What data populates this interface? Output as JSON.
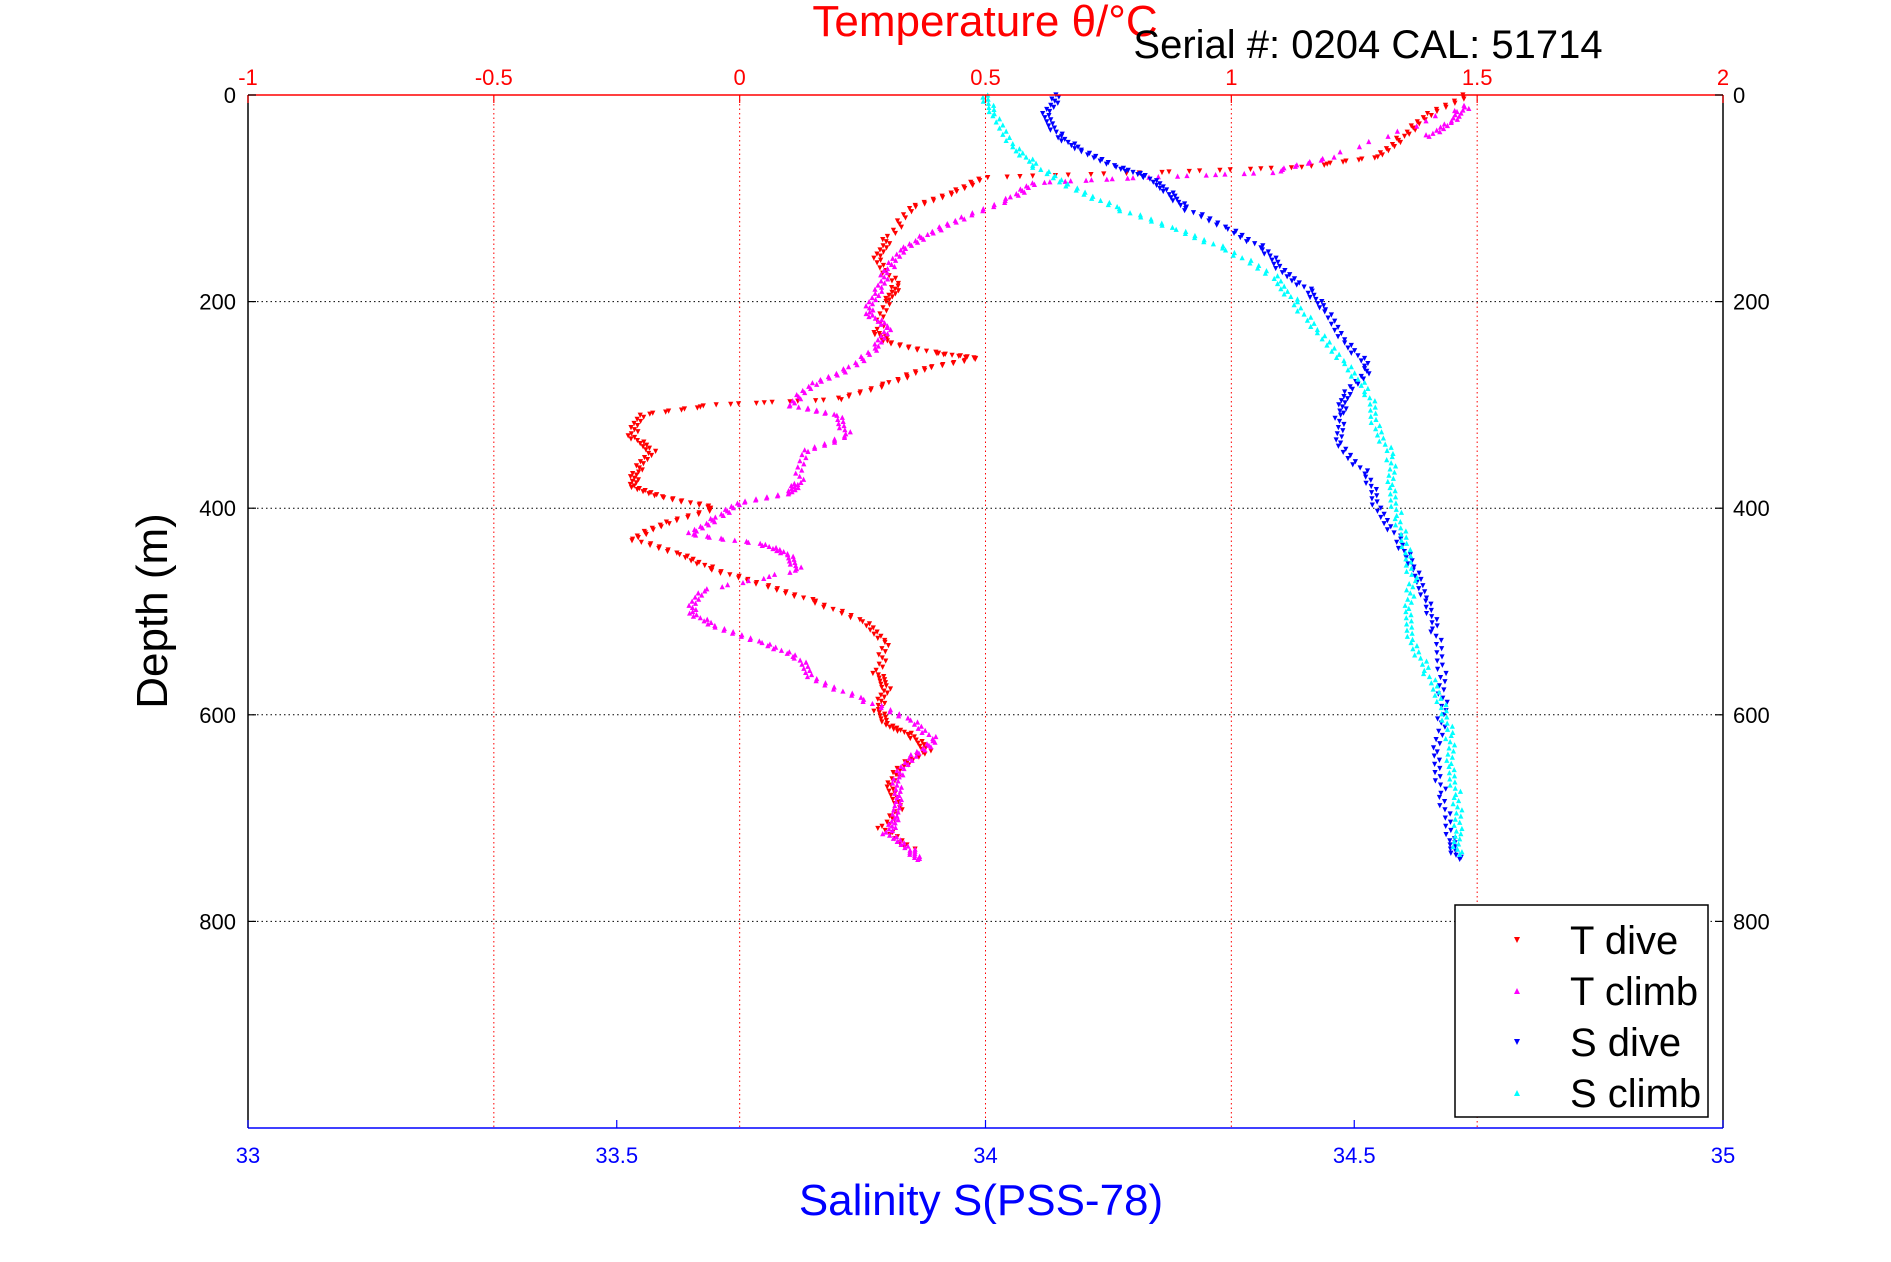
{
  "chart_data": {
    "type": "scatter",
    "title": "Temperature θ/°C",
    "subtitle": "Serial #: 0204  CAL: 51714",
    "ylabel": "Depth (m)",
    "xlabel": "Salinity S(PSS-78)",
    "y_axis": {
      "range": [
        0,
        1000
      ],
      "inverted": true,
      "ticks": [
        0,
        200,
        400,
        600,
        800
      ],
      "grid": true
    },
    "x_top_axis": {
      "label": "Temperature θ/°C",
      "range": [
        -1,
        2
      ],
      "ticks": [
        "-1",
        "-0.5",
        "0",
        "0.5",
        "1",
        "1.5",
        "2"
      ],
      "grid": true,
      "color": "#ff0000"
    },
    "x_bottom_axis": {
      "label": "Salinity S(PSS-78)",
      "range": [
        33,
        35
      ],
      "ticks": [
        "33",
        "33.5",
        "34",
        "34.5",
        "35"
      ],
      "color": "#0000ff"
    },
    "legend_position": "bottom-right",
    "series": [
      {
        "name": "T dive",
        "axis": "temperature",
        "color": "#ff0000",
        "marker": "triangle-down",
        "points": [
          [
            1.48,
            0
          ],
          [
            1.4,
            20
          ],
          [
            1.35,
            40
          ],
          [
            1.3,
            60
          ],
          [
            1.15,
            70
          ],
          [
            0.85,
            75
          ],
          [
            0.5,
            80
          ],
          [
            0.43,
            95
          ],
          [
            0.35,
            110
          ],
          [
            0.3,
            140
          ],
          [
            0.28,
            160
          ],
          [
            0.32,
            185
          ],
          [
            0.3,
            200
          ],
          [
            0.28,
            230
          ],
          [
            0.3,
            240
          ],
          [
            0.4,
            250
          ],
          [
            0.48,
            255
          ],
          [
            0.38,
            265
          ],
          [
            0.3,
            280
          ],
          [
            0.2,
            295
          ],
          [
            -0.05,
            300
          ],
          [
            -0.2,
            310
          ],
          [
            -0.22,
            330
          ],
          [
            -0.18,
            345
          ],
          [
            -0.21,
            365
          ],
          [
            -0.22,
            380
          ],
          [
            -0.15,
            390
          ],
          [
            -0.05,
            400
          ],
          [
            -0.15,
            415
          ],
          [
            -0.22,
            430
          ],
          [
            -0.12,
            445
          ],
          [
            -0.05,
            460
          ],
          [
            0.05,
            475
          ],
          [
            0.15,
            490
          ],
          [
            0.25,
            510
          ],
          [
            0.3,
            530
          ],
          [
            0.28,
            560
          ],
          [
            0.3,
            575
          ],
          [
            0.28,
            595
          ],
          [
            0.3,
            610
          ],
          [
            0.35,
            620
          ],
          [
            0.38,
            635
          ],
          [
            0.33,
            650
          ],
          [
            0.3,
            670
          ],
          [
            0.33,
            690
          ],
          [
            0.29,
            710
          ],
          [
            0.35,
            730
          ]
        ]
      },
      {
        "name": "T climb",
        "axis": "temperature",
        "color": "#ff00ff",
        "marker": "triangle-up",
        "points": [
          [
            1.4,
            40
          ],
          [
            1.45,
            25
          ],
          [
            1.48,
            10
          ],
          [
            1.2,
            60
          ],
          [
            1.08,
            75
          ],
          [
            0.8,
            80
          ],
          [
            0.6,
            85
          ],
          [
            0.55,
            100
          ],
          [
            0.45,
            120
          ],
          [
            0.38,
            135
          ],
          [
            0.33,
            150
          ],
          [
            0.3,
            170
          ],
          [
            0.28,
            190
          ],
          [
            0.26,
            210
          ],
          [
            0.3,
            225
          ],
          [
            0.28,
            245
          ],
          [
            0.22,
            265
          ],
          [
            0.15,
            280
          ],
          [
            0.1,
            300
          ],
          [
            0.2,
            310
          ],
          [
            0.22,
            330
          ],
          [
            0.13,
            345
          ],
          [
            0.12,
            375
          ],
          [
            0.1,
            385
          ],
          [
            0.0,
            395
          ],
          [
            -0.05,
            410
          ],
          [
            -0.1,
            425
          ],
          [
            0.05,
            435
          ],
          [
            0.1,
            445
          ],
          [
            0.12,
            460
          ],
          [
            -0.08,
            480
          ],
          [
            -0.1,
            500
          ],
          [
            -0.05,
            515
          ],
          [
            0.05,
            530
          ],
          [
            0.12,
            545
          ],
          [
            0.15,
            565
          ],
          [
            0.25,
            585
          ],
          [
            0.35,
            605
          ],
          [
            0.4,
            625
          ],
          [
            0.35,
            640
          ],
          [
            0.32,
            660
          ],
          [
            0.32,
            680
          ],
          [
            0.32,
            700
          ],
          [
            0.3,
            715
          ],
          [
            0.35,
            730
          ],
          [
            0.36,
            740
          ]
        ]
      },
      {
        "name": "S dive",
        "axis": "salinity",
        "color": "#0000ff",
        "marker": "triangle-down",
        "points": [
          [
            34.1,
            0
          ],
          [
            34.08,
            20
          ],
          [
            34.1,
            40
          ],
          [
            34.13,
            55
          ],
          [
            34.18,
            70
          ],
          [
            34.22,
            80
          ],
          [
            34.25,
            95
          ],
          [
            34.27,
            110
          ],
          [
            34.33,
            130
          ],
          [
            34.38,
            150
          ],
          [
            34.4,
            170
          ],
          [
            34.44,
            190
          ],
          [
            34.46,
            210
          ],
          [
            34.49,
            240
          ],
          [
            34.52,
            265
          ],
          [
            34.49,
            290
          ],
          [
            34.48,
            310
          ],
          [
            34.48,
            340
          ],
          [
            34.52,
            370
          ],
          [
            34.53,
            400
          ],
          [
            34.56,
            430
          ],
          [
            34.58,
            460
          ],
          [
            34.6,
            490
          ],
          [
            34.61,
            520
          ],
          [
            34.62,
            560
          ],
          [
            34.62,
            600
          ],
          [
            34.61,
            640
          ],
          [
            34.62,
            680
          ],
          [
            34.63,
            720
          ],
          [
            34.64,
            740
          ]
        ]
      },
      {
        "name": "S climb",
        "axis": "salinity",
        "color": "#00ffff",
        "marker": "triangle-up",
        "points": [
          [
            34.0,
            0
          ],
          [
            34.01,
            20
          ],
          [
            34.04,
            50
          ],
          [
            34.07,
            70
          ],
          [
            34.12,
            90
          ],
          [
            34.18,
            110
          ],
          [
            34.26,
            130
          ],
          [
            34.33,
            150
          ],
          [
            34.39,
            175
          ],
          [
            34.42,
            200
          ],
          [
            34.45,
            230
          ],
          [
            34.49,
            260
          ],
          [
            34.52,
            290
          ],
          [
            34.53,
            320
          ],
          [
            34.55,
            350
          ],
          [
            34.55,
            380
          ],
          [
            34.56,
            410
          ],
          [
            34.57,
            440
          ],
          [
            34.58,
            470
          ],
          [
            34.57,
            500
          ],
          [
            34.58,
            530
          ],
          [
            34.6,
            560
          ],
          [
            34.62,
            590
          ],
          [
            34.63,
            620
          ],
          [
            34.63,
            650
          ],
          [
            34.64,
            680
          ],
          [
            34.64,
            710
          ],
          [
            34.64,
            735
          ]
        ]
      }
    ]
  }
}
